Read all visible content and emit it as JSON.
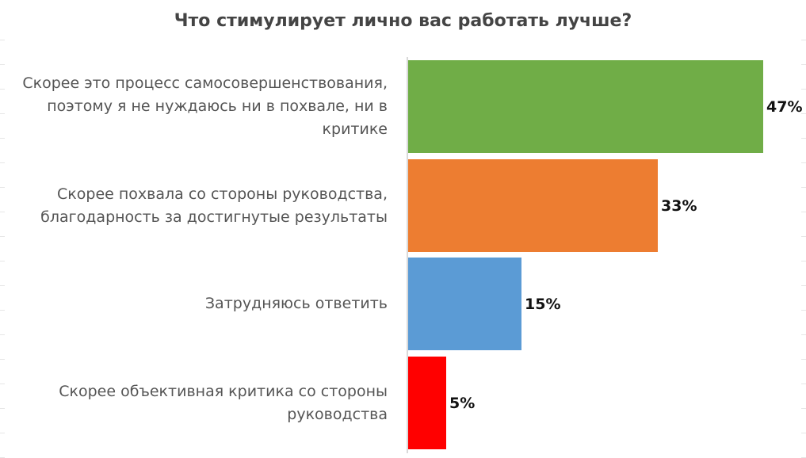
{
  "chart_data": {
    "type": "bar",
    "orientation": "horizontal",
    "title": "Что стимулирует лично вас работать лучше?",
    "categories": [
      "Скорее это процесс самосовершенствования, поэтому я не нуждаюсь ни в похвале, ни в критике",
      "Скорее похвала со стороны руководства, благодарность за достигнутые результаты",
      "Затрудняюсь ответить",
      "Скорее объективная критика со стороны руководства"
    ],
    "values": [
      47,
      33,
      15,
      5
    ],
    "value_labels": [
      "47%",
      "33%",
      "15%",
      "5%"
    ],
    "colors": [
      "#70ad47",
      "#ed7d31",
      "#5b9bd5",
      "#ff0000"
    ],
    "xlim": [
      0,
      50
    ],
    "grid": false,
    "legend": "none"
  }
}
